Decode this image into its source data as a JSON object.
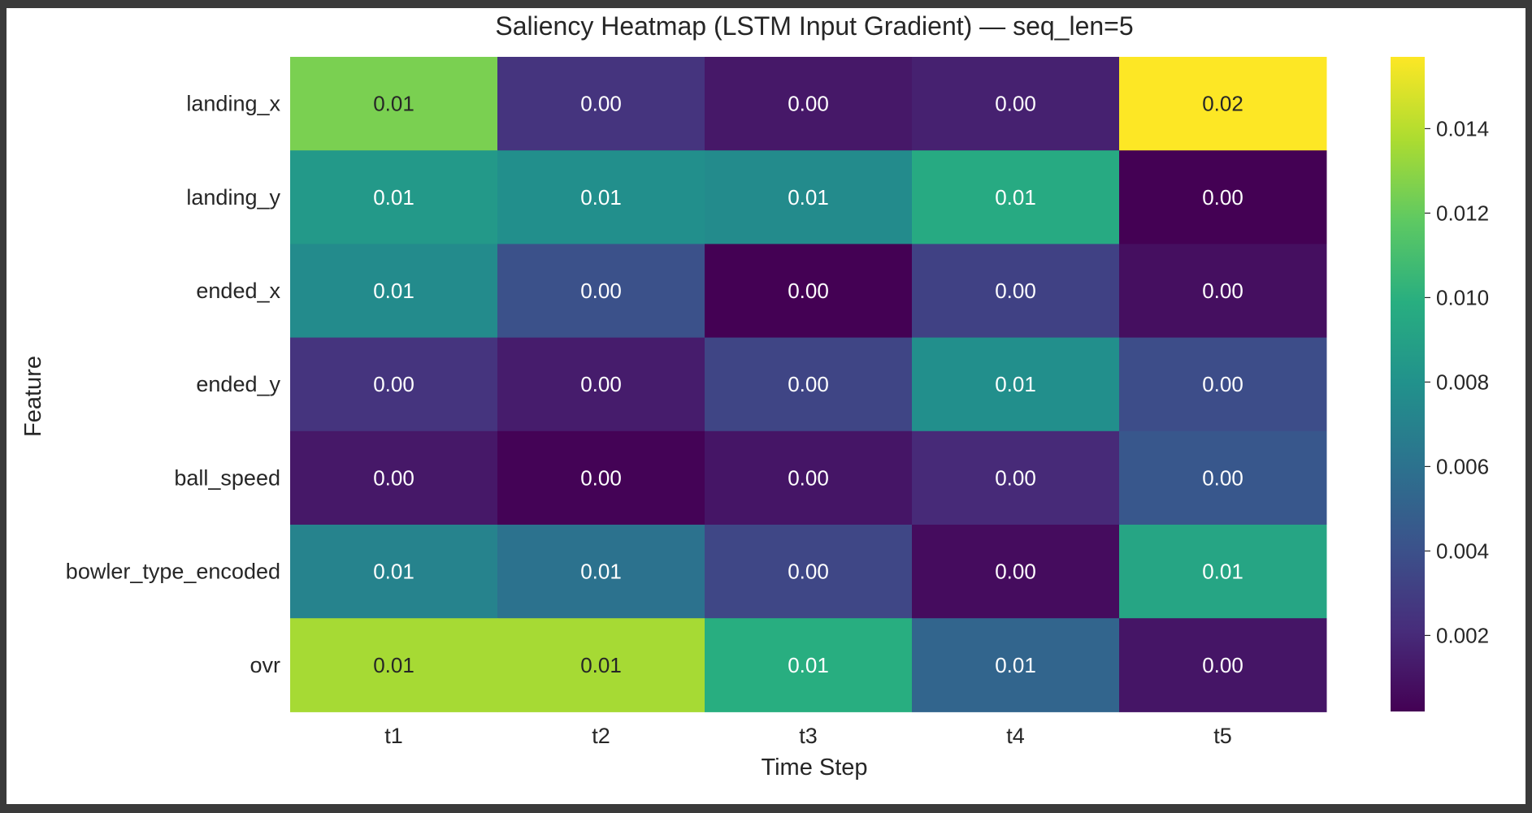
{
  "chart_data": {
    "type": "heatmap",
    "title": "Saliency Heatmap (LSTM Input Gradient) — seq_len=5",
    "xlabel": "Time Step",
    "ylabel": "Feature",
    "x_categories": [
      "t1",
      "t2",
      "t3",
      "t4",
      "t5"
    ],
    "y_categories": [
      "landing_x",
      "landing_y",
      "ended_x",
      "ended_y",
      "ball_speed",
      "bowler_type_encoded",
      "ovr"
    ],
    "values": [
      [
        0.0125,
        0.0025,
        0.0012,
        0.0016,
        0.0157
      ],
      [
        0.0085,
        0.0078,
        0.0076,
        0.0096,
        0.0002
      ],
      [
        0.0076,
        0.004,
        0.0002,
        0.0032,
        0.0008
      ],
      [
        0.0025,
        0.0014,
        0.0034,
        0.0078,
        0.0038
      ],
      [
        0.0012,
        0.0003,
        0.0011,
        0.002,
        0.0044
      ],
      [
        0.0071,
        0.006,
        0.0035,
        0.0007,
        0.0093
      ],
      [
        0.0136,
        0.0136,
        0.0099,
        0.0052,
        0.0011
      ]
    ],
    "annotations": [
      [
        "0.01",
        "0.00",
        "0.00",
        "0.00",
        "0.02"
      ],
      [
        "0.01",
        "0.01",
        "0.01",
        "0.01",
        "0.00"
      ],
      [
        "0.01",
        "0.00",
        "0.00",
        "0.00",
        "0.00"
      ],
      [
        "0.00",
        "0.00",
        "0.00",
        "0.01",
        "0.00"
      ],
      [
        "0.00",
        "0.00",
        "0.00",
        "0.00",
        "0.00"
      ],
      [
        "0.01",
        "0.01",
        "0.00",
        "0.00",
        "0.01"
      ],
      [
        "0.01",
        "0.01",
        "0.01",
        "0.01",
        "0.00"
      ]
    ],
    "colormap": "viridis",
    "vmin": 0.0002,
    "vmax": 0.0157,
    "colorbar_ticks": [
      0.002,
      0.004,
      0.006,
      0.008,
      0.01,
      0.012,
      0.014
    ],
    "colorbar_tick_labels": [
      "0.002",
      "0.004",
      "0.006",
      "0.008",
      "0.010",
      "0.012",
      "0.014"
    ]
  }
}
